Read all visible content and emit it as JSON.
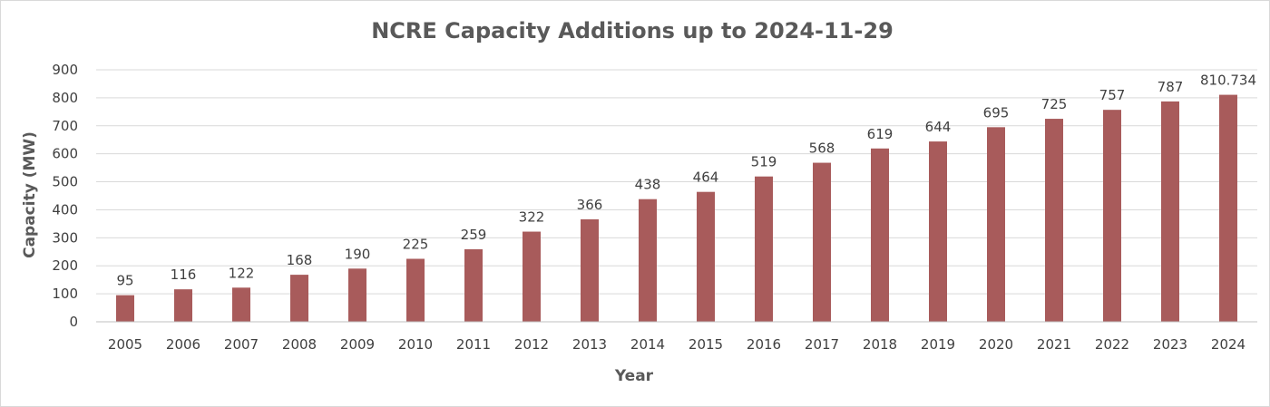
{
  "chart_data": {
    "type": "bar",
    "title": "NCRE Capacity Additions up to 2024-11-29",
    "xlabel": "Year",
    "ylabel": "Capacity (MW)",
    "ylim": [
      0,
      900
    ],
    "yticks": [
      "0",
      "100",
      "200",
      "300",
      "400",
      "500",
      "600",
      "700",
      "800",
      "900"
    ],
    "grid": true,
    "legend": "none",
    "bar_color": "#a85b5b",
    "categories": [
      "2005",
      "2006",
      "2007",
      "2008",
      "2009",
      "2010",
      "2011",
      "2012",
      "2013",
      "2014",
      "2015",
      "2016",
      "2017",
      "2018",
      "2019",
      "2020",
      "2021",
      "2022",
      "2023",
      "2024"
    ],
    "values": [
      95,
      116,
      122,
      168,
      190,
      225,
      259,
      322,
      366,
      438,
      464,
      519,
      568,
      619,
      644,
      695,
      725,
      757,
      787,
      810.734
    ],
    "data_labels": [
      "95",
      "116",
      "122",
      "168",
      "190",
      "225",
      "259",
      "322",
      "366",
      "438",
      "464",
      "519",
      "568",
      "619",
      "644",
      "695",
      "725",
      "757",
      "787",
      "810.734"
    ]
  }
}
